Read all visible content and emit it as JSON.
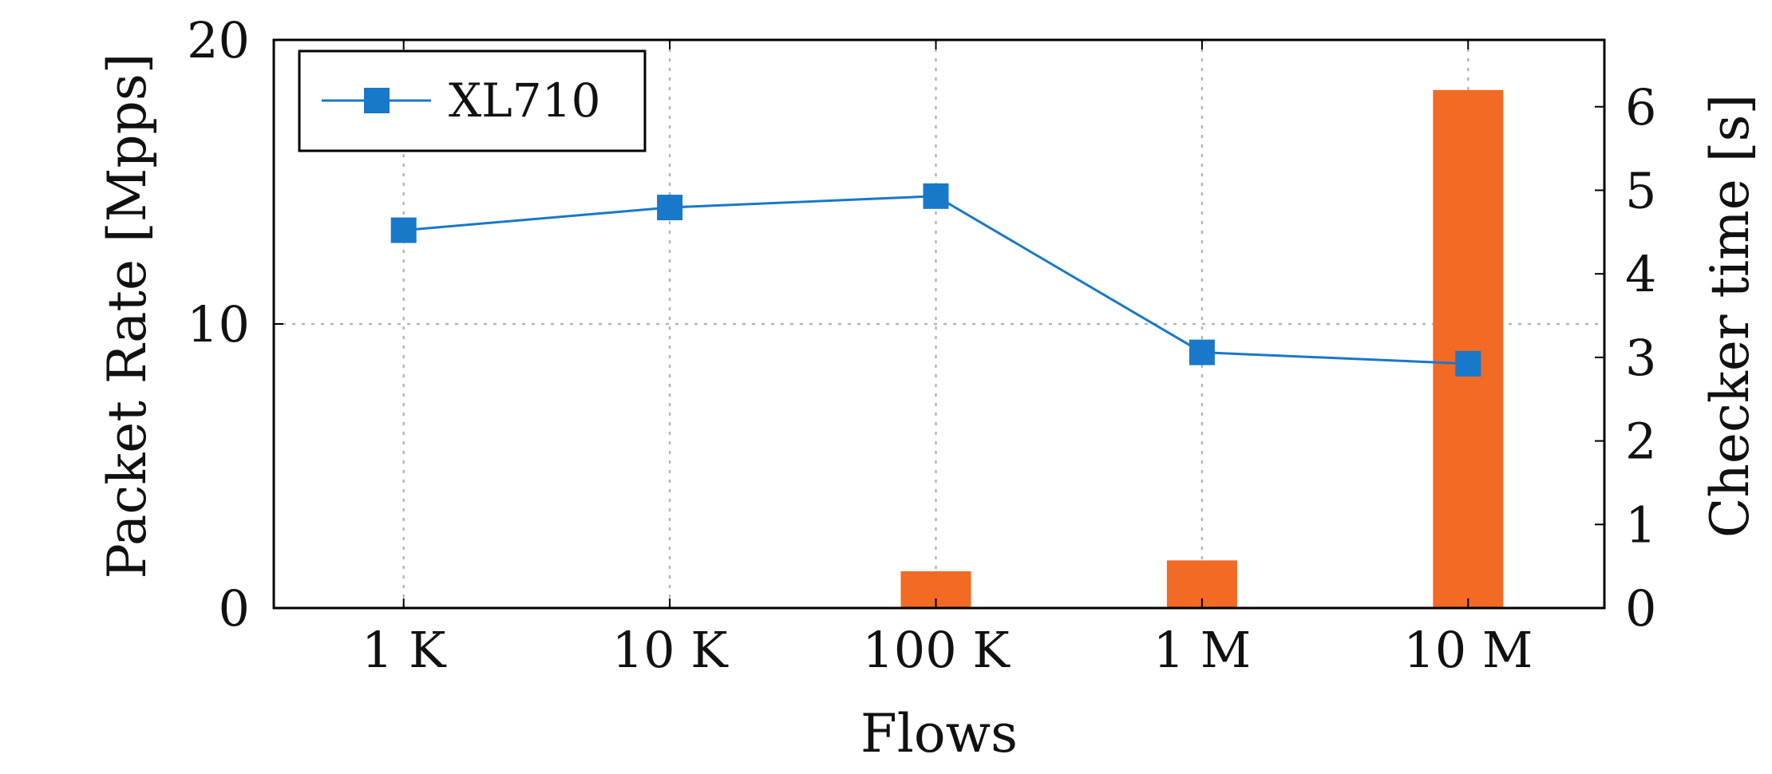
{
  "chart_data": {
    "type": "bar+line",
    "categories": [
      "1 K",
      "10 K",
      "100 K",
      "1 M",
      "10 M"
    ],
    "xlabel": "Flows",
    "ylabel": "Packet Rate [Mpps]",
    "y2label": "Checker time [s]",
    "ylim": [
      0,
      20
    ],
    "y2lim": [
      0,
      6.8
    ],
    "yticks": [
      "0",
      "10",
      "20"
    ],
    "y2ticks": [
      "0",
      "1",
      "2",
      "3",
      "4",
      "5",
      "6"
    ],
    "grid": true,
    "legend": {
      "position": "top-left",
      "entries": [
        "XL710"
      ]
    },
    "series": [
      {
        "name": "XL710",
        "kind": "line",
        "axis": "left",
        "marker": "square",
        "color": "#1878c9",
        "values": [
          13.3,
          14.1,
          14.5,
          9.0,
          8.6
        ]
      },
      {
        "kind": "bar",
        "axis": "right",
        "color": "#f26a24",
        "values": [
          0,
          0,
          0.44,
          0.57,
          6.2
        ]
      }
    ]
  }
}
